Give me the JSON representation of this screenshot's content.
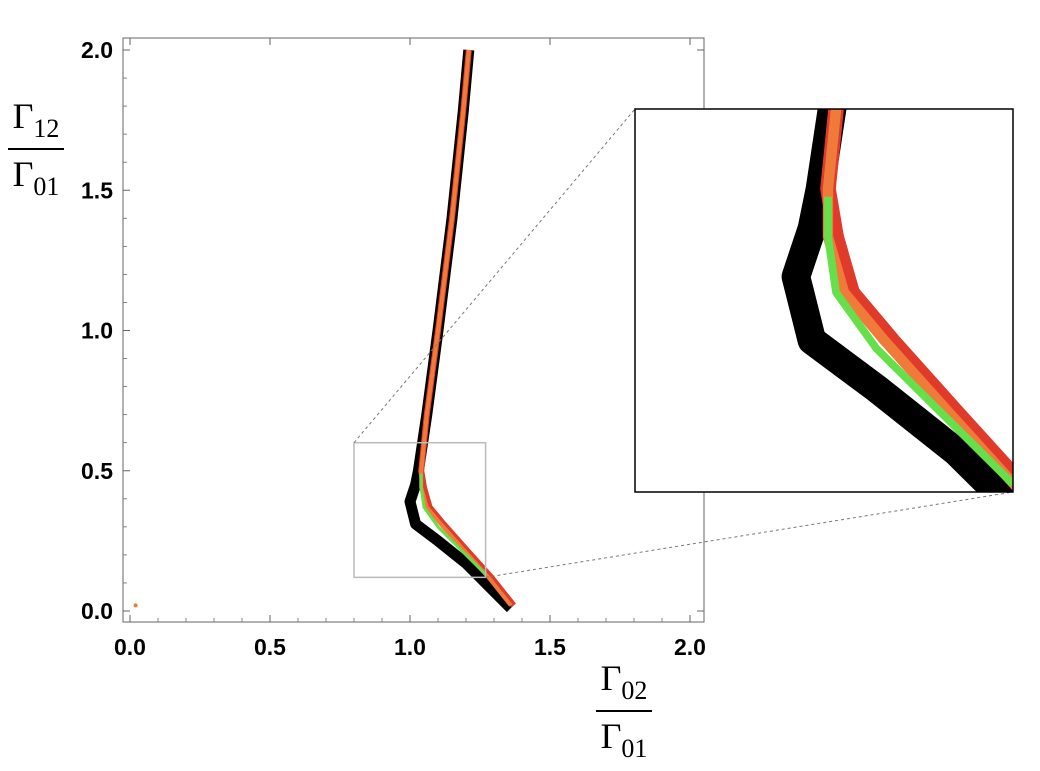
{
  "chart_data": {
    "type": "line",
    "xlabel": {
      "symbol": "Γ",
      "num_sub": "02",
      "den_sub": "01"
    },
    "ylabel": {
      "symbol": "Γ",
      "num_sub": "12",
      "den_sub": "01"
    },
    "xlim": [
      0,
      2
    ],
    "ylim": [
      0,
      2
    ],
    "xticks": [
      "0.0",
      "0.5",
      "1.0",
      "1.5",
      "2.0"
    ],
    "yticks": [
      "0.0",
      "0.5",
      "1.0",
      "1.5",
      "2.0"
    ],
    "xtick_values": [
      0,
      0.5,
      1.0,
      1.5,
      2.0
    ],
    "ytick_values": [
      0,
      0.5,
      1.0,
      1.5,
      2.0
    ],
    "grid": false,
    "series": [
      {
        "color": "#000000",
        "points": [
          [
            1.21,
            2.0
          ],
          [
            1.19,
            1.78
          ],
          [
            1.15,
            1.4
          ],
          [
            1.1,
            1.0
          ],
          [
            1.06,
            0.7
          ],
          [
            1.03,
            0.5
          ],
          [
            1.02,
            0.45
          ],
          [
            1.0,
            0.39
          ],
          [
            1.02,
            0.31
          ],
          [
            1.1,
            0.25
          ],
          [
            1.2,
            0.17
          ],
          [
            1.28,
            0.09
          ],
          [
            1.36,
            0.01
          ]
        ]
      },
      {
        "color": "#e03a2a",
        "points": [
          [
            1.21,
            2.0
          ],
          [
            1.19,
            1.78
          ],
          [
            1.15,
            1.4
          ],
          [
            1.1,
            1.0
          ],
          [
            1.06,
            0.7
          ],
          [
            1.04,
            0.5
          ],
          [
            1.05,
            0.44
          ],
          [
            1.07,
            0.37
          ],
          [
            1.12,
            0.31
          ],
          [
            1.2,
            0.22
          ],
          [
            1.29,
            0.12
          ],
          [
            1.37,
            0.02
          ]
        ]
      },
      {
        "color": "#f07a3a",
        "points": [
          [
            1.21,
            2.0
          ],
          [
            1.19,
            1.78
          ],
          [
            1.15,
            1.4
          ],
          [
            1.1,
            1.0
          ],
          [
            1.06,
            0.7
          ],
          [
            1.04,
            0.5
          ],
          [
            1.04,
            0.44
          ],
          [
            1.06,
            0.37
          ],
          [
            1.11,
            0.31
          ],
          [
            1.19,
            0.22
          ],
          [
            1.28,
            0.12
          ],
          [
            1.36,
            0.02
          ]
        ]
      },
      {
        "color": "#66e04a",
        "points": [
          [
            1.04,
            0.49
          ],
          [
            1.04,
            0.44
          ],
          [
            1.05,
            0.37
          ],
          [
            1.1,
            0.3
          ],
          [
            1.18,
            0.22
          ],
          [
            1.27,
            0.13
          ]
        ]
      }
    ],
    "outlier_point": {
      "x": 0.02,
      "y": 0.02,
      "color": "#f07a3a"
    },
    "zoom_region": {
      "xlim": [
        0.8,
        1.27
      ],
      "ylim": [
        0.12,
        0.6
      ]
    }
  },
  "colors": {
    "zoom_box": "#bbbbbb",
    "connector": "#777777",
    "axis": "#666666"
  }
}
